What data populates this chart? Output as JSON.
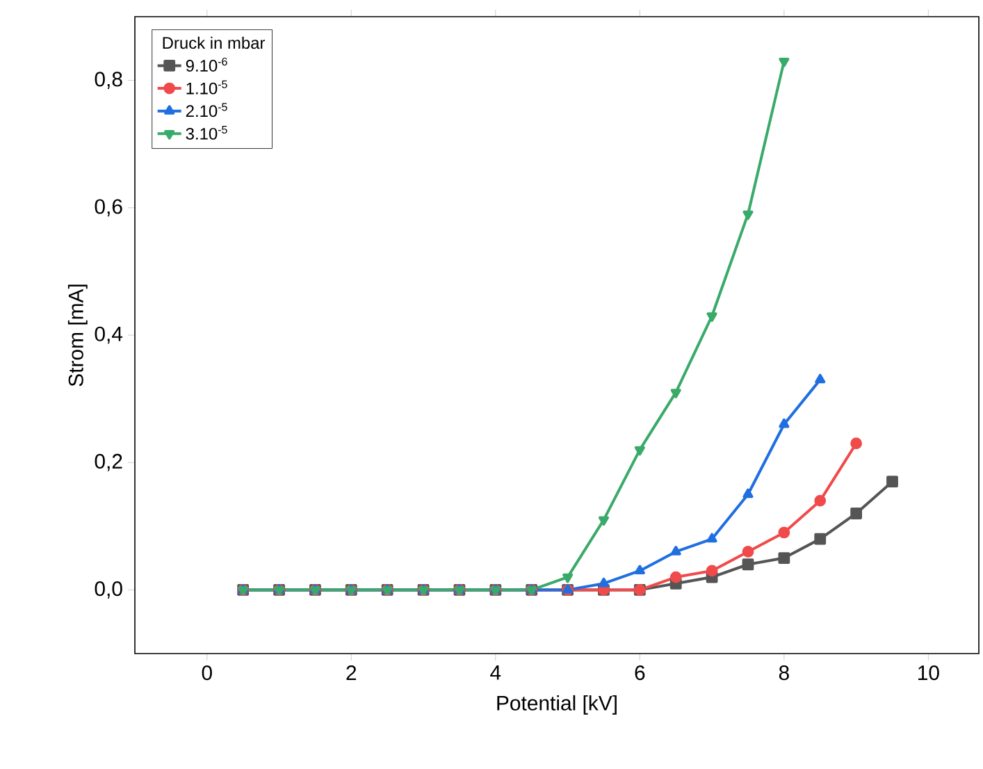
{
  "chart_data": {
    "type": "line",
    "xlabel": "Potential [kV]",
    "ylabel": "Strom [mA]",
    "legend_title": "Druck in mbar",
    "legend": "top left",
    "grid": false,
    "x": [
      0.5,
      1,
      1.5,
      2,
      2.5,
      3,
      3.5,
      4,
      4.5,
      5,
      5.5,
      6,
      6.5,
      7,
      7.5,
      8,
      8.5,
      9,
      9.5
    ],
    "xlim": [
      -1,
      10.7
    ],
    "xticks": [
      0,
      2,
      4,
      6,
      8,
      10
    ],
    "ylim": [
      -0.1,
      0.9
    ],
    "yticks": [
      {
        "value": 0,
        "label": "0,0"
      },
      {
        "value": 0.2,
        "label": "0,2"
      },
      {
        "value": 0.4,
        "label": "0,4"
      },
      {
        "value": 0.6,
        "label": "0,6"
      },
      {
        "value": 0.8,
        "label": "0,8"
      }
    ],
    "series": [
      {
        "name": "9.10$^{-6}$",
        "color": "#555555",
        "marker": "square",
        "values": [
          0,
          0,
          0,
          0,
          0,
          0,
          0,
          0,
          0,
          0,
          0,
          0,
          0.01,
          0.02,
          0.04,
          0.05,
          0.08,
          0.12,
          0.17
        ]
      },
      {
        "name": "1.10$^{-5}$",
        "color": "#f04a4a",
        "marker": "circle",
        "values": [
          0,
          0,
          0,
          0,
          0,
          0,
          0,
          0,
          0,
          0,
          0,
          0,
          0.02,
          0.03,
          0.06,
          0.09,
          0.14,
          0.23,
          null
        ]
      },
      {
        "name": "2.10$^{-5}$",
        "color": "#1f6fe0",
        "marker": "triangle",
        "values": [
          0,
          0,
          0,
          0,
          0,
          0,
          0,
          0,
          0,
          0,
          0.01,
          0.03,
          0.06,
          0.08,
          0.15,
          0.26,
          0.33,
          null,
          null
        ]
      },
      {
        "name": "3.10$^{-5}$",
        "color": "#3aaa6a",
        "marker": "triangle down",
        "values": [
          0,
          0,
          0,
          0,
          0,
          0,
          0,
          0,
          0,
          0.02,
          0.11,
          0.22,
          0.31,
          0.43,
          0.59,
          0.83,
          null,
          null,
          null
        ]
      }
    ]
  }
}
